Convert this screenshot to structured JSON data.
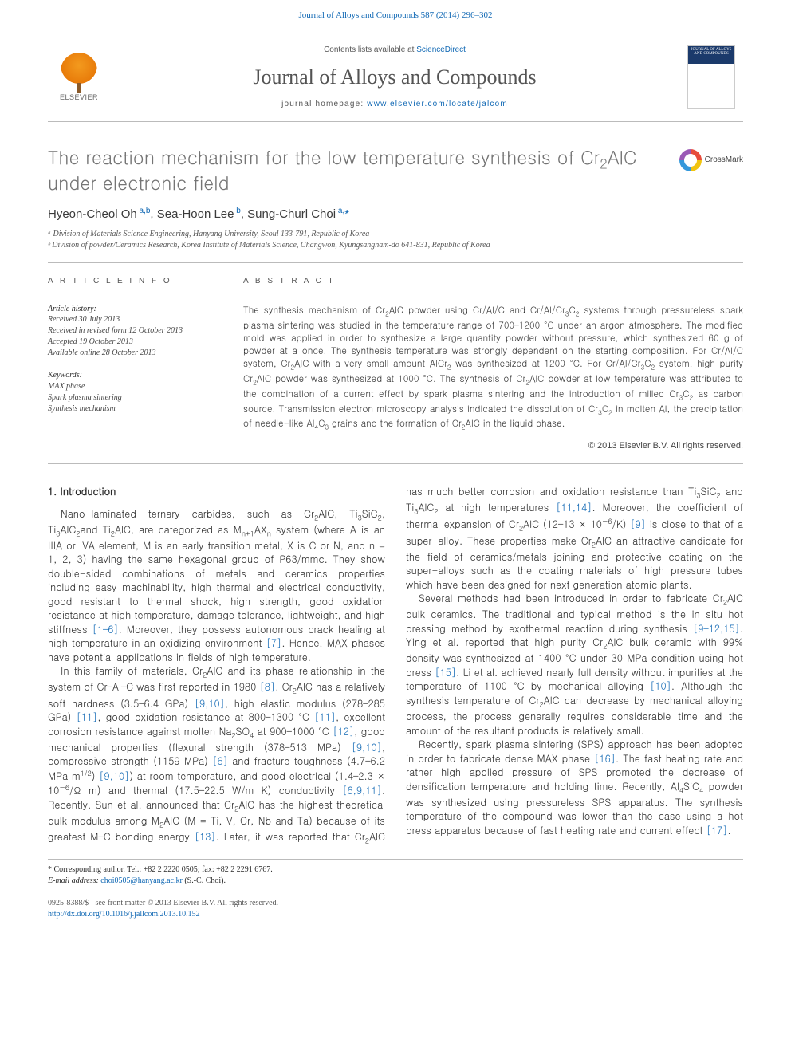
{
  "header": {
    "citation_journal": "Journal of Alloys and Compounds 587 (2014) 296–302",
    "contents_prefix": "Contents lists available at ",
    "contents_link": "ScienceDirect",
    "journal_name": "Journal of Alloys and Compounds",
    "homepage_prefix": "journal homepage: ",
    "homepage_link": "www.elsevier.com/locate/jalcom",
    "elsevier_label": "ELSEVIER",
    "cover_label": "JOURNAL OF ALLOYS AND COMPOUNDS"
  },
  "article": {
    "title_html": "The reaction mechanism for the low temperature synthesis of Cr<sub>2</sub>AlC under electronic field",
    "crossmark": "CrossMark"
  },
  "authors": {
    "list_html": "Hyeon-Cheol Oh<sup> a,b</sup>, Sea-Hoon Lee<sup> b</sup>, Sung-Churl Choi<sup> a,</sup><a href=\"#\">*</a>",
    "affiliations": [
      "ᵃ Division of Materials Science Engineering, Hanyang University, Seoul 133-791, Republic of Korea",
      "ᵇ Division of powder/Ceramics Research, Korea Institute of Materials Science, Changwon, Kyungsangnam-do 641-831, Republic of Korea"
    ]
  },
  "meta": {
    "info_heading": "A R T I C L E   I N F O",
    "abstract_heading": "A B S T R A C T",
    "history_label": "Article history:",
    "history": [
      "Received 30 July 2013",
      "Received in revised form 12 October 2013",
      "Accepted 19 October 2013",
      "Available online 28 October 2013"
    ],
    "keywords_label": "Keywords:",
    "keywords": [
      "MAX phase",
      "Spark plasma sintering",
      "Synthesis mechanism"
    ]
  },
  "abstract": {
    "text_html": "The synthesis mechanism of Cr<sub>2</sub>AlC powder using Cr/Al/C and Cr/Al/Cr<sub>3</sub>C<sub>2</sub> systems through pressureless spark plasma sintering was studied in the temperature range of 700–1200 °C under an argon atmosphere. The modified mold was applied in order to synthesize a large quantity powder without pressure, which synthesized 60 g of powder at a once. The synthesis temperature was strongly dependent on the starting composition. For Cr/Al/C system, Cr<sub>2</sub>AlC with a very small amount AlCr<sub>2</sub> was synthesized at 1200 °C. For Cr/Al/Cr<sub>3</sub>C<sub>2</sub> system, high purity Cr<sub>2</sub>AlC powder was synthesized at 1000 °C. The synthesis of Cr<sub>2</sub>AlC powder at low temperature was attributed to the combination of a current effect by spark plasma sintering and the introduction of milled Cr<sub>3</sub>C<sub>2</sub> as carbon source. Transmission electron microscopy analysis indicated the dissolution of Cr<sub>3</sub>C<sub>2</sub> in molten Al, the precipitation of needle-like Al<sub>4</sub>C<sub>3</sub> grains and the formation of Cr<sub>2</sub>AlC in the liquid phase.",
    "copyright": "© 2013 Elsevier B.V. All rights reserved."
  },
  "body": {
    "heading": "1. Introduction",
    "p1_html": "Nano-laminated ternary carbides, such as Cr<sub>2</sub>AlC, Ti<sub>3</sub>SiC<sub>2</sub>, Ti<sub>3</sub>AlC<sub>2</sub>and Ti<sub>2</sub>AlC, are categorized as M<sub>n+1</sub>AX<sub>n</sub> system (where A is an IIIA or IVA element, M is an early transition metal, X is C or N, and n = 1, 2, 3) having the same hexagonal group of P63/mmc. They show double-sided combinations of metals and ceramics properties including easy machinability, high thermal and electrical conductivity, good resistant to thermal shock, high strength, good oxidation resistance at high temperature, damage tolerance, lightweight, and high stiffness <span class=\"ref\">[1–6]</span>. Moreover, they possess autonomous crack healing at high temperature in an oxidizing environment <span class=\"ref\">[7]</span>. Hence, MAX phases have potential applications in fields of high temperature.",
    "p2_html": "In this family of materials, Cr<sub>2</sub>AlC and its phase relationship in the system of Cr–Al–C was first reported in 1980 <span class=\"ref\">[8]</span>. Cr<sub>2</sub>AlC has a relatively soft hardness (3.5–6.4 GPa) <span class=\"ref\">[9,10]</span>, high elastic modulus (278–285 GPa) <span class=\"ref\">[11]</span>, good oxidation resistance at 800–1300 °C <span class=\"ref\">[11]</span>, excellent corrosion resistance against molten Na<sub>2</sub>SO<sub>4</sub> at 900–1000 °C <span class=\"ref\">[12]</span>, good mechanical properties (flexural strength (378–513 MPa) <span class=\"ref\">[9,10]</span>, compressive strength (1159 MPa) <span class=\"ref\">[6]</span> and fracture toughness (4.7–6.2 MPa m<sup>1/2</sup>) <span class=\"ref\">[9,10]</span>) at room temperature, and good electrical (1.4–2.3 × 10<sup>−6</sup>/Ω m) and thermal (17.5–22.5 W/m K) conductivity <span class=\"ref\">[6,9,11]</span>. Recently, Sun et al. announced that Cr<sub>2</sub>AlC has the highest theoretical bulk modulus among M<sub>2</sub>AlC (M = Ti, V, Cr, Nb and Ta) because of its greatest M–C bonding energy <span class=\"ref\">[13]</span>. Later, it was reported that Cr<sub>2</sub>AlC has much better corrosion and oxidation resistance than Ti<sub>3</sub>SiC<sub>2</sub> and Ti<sub>3</sub>AlC<sub>2</sub> at high temperatures <span class=\"ref\">[11,14]</span>. Moreover, the coefficient of thermal expansion of Cr<sub>2</sub>AlC (12–13 × 10<sup>−6</sup>/K) <span class=\"ref\">[9]</span> is close to that of a super-alloy. These properties make Cr<sub>2</sub>AlC an attractive candidate for the field of ceramics/metals joining and protective coating on the super-alloys such as the coating materials of high pressure tubes which have been designed for next generation atomic plants.",
    "p3_html": "Several methods had been introduced in order to fabricate Cr<sub>2</sub>AlC bulk ceramics. The traditional and typical method is the in situ hot pressing method by exothermal reaction during synthesis <span class=\"ref\">[9–12,15]</span>. Ying et al. reported that high purity Cr<sub>2</sub>AlC bulk ceramic with 99% density was synthesized at 1400 °C under 30 MPa condition using hot press <span class=\"ref\">[15]</span>. Li et al. achieved nearly full density without impurities at the temperature of 1100 °C by mechanical alloying <span class=\"ref\">[10]</span>. Although the synthesis temperature of Cr<sub>2</sub>AlC can decrease by mechanical alloying process, the process generally requires considerable time and the amount of the resultant products is relatively small.",
    "p4_html": "Recently, spark plasma sintering (SPS) approach has been adopted in order to fabricate dense MAX phase <span class=\"ref\">[16]</span>. The fast heating rate and rather high applied pressure of SPS promoted the decrease of densification temperature and holding time. Recently, Al<sub>4</sub>SiC<sub>4</sub> powder was synthesized using pressureless SPS apparatus. The synthesis temperature of the compound was lower than the case using a hot press apparatus because of fast heating rate and current effect <span class=\"ref\">[17]</span>."
  },
  "footer": {
    "corresponding_html": "* Corresponding author. Tel.: +82 2 2220 0505; fax: +82 2 2291 6767.",
    "email_label": "E-mail address:",
    "email": "choi0505@hanyang.ac.kr",
    "email_suffix": "(S.-C. Choi).",
    "issn_line": "0925-8388/$ - see front matter © 2013 Elsevier B.V. All rights reserved.",
    "doi": "http://dx.doi.org/10.1016/j.jallcom.2013.10.152"
  },
  "colors": {
    "link": "#1068b4",
    "heading_gray": "#747474",
    "text": "#2a2a2a",
    "rule": "#bbbbbb"
  }
}
